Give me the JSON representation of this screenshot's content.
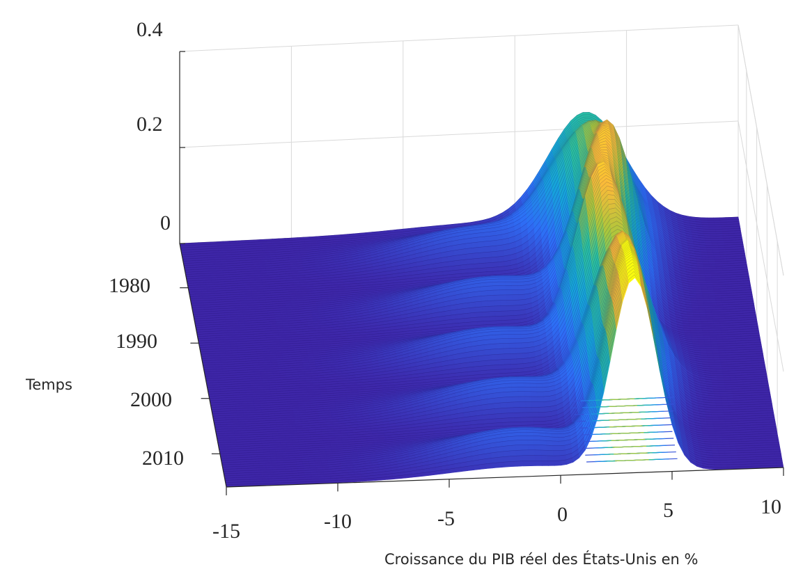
{
  "chart_data": {
    "type": "surface3d",
    "title": "",
    "xlabel": "Croissance du PIB réel des États-Unis en %",
    "ylabel": "Temps",
    "zlabel": "",
    "x_ticks": [
      "-15",
      "-10",
      "-5",
      "0",
      "5",
      "10"
    ],
    "y_ticks": [
      "1980",
      "1990",
      "2000",
      "2010"
    ],
    "z_ticks": [
      "0",
      "0.2",
      "0.4"
    ],
    "xlim": [
      -15,
      10
    ],
    "ylim": [
      1972,
      2016
    ],
    "zlim": [
      0,
      0.4
    ],
    "colormap": "parula",
    "colors": {
      "low": "#3e26a8",
      "mid": "#1fb8c8",
      "high": "#f9fb0e"
    },
    "grid": true,
    "contour_projection": true,
    "peaks": [
      {
        "year": 1975,
        "mean": 3.2,
        "sd": 1.7,
        "density": 0.23
      },
      {
        "year": 1983,
        "mean": 3.6,
        "sd": 1.2,
        "density": 0.34
      },
      {
        "year": 1992,
        "mean": 3.0,
        "sd": 1.15,
        "density": 0.36
      },
      {
        "year": 2000,
        "mean": 3.4,
        "sd": 1.3,
        "density": 0.3
      },
      {
        "year": 2009,
        "mean": 3.3,
        "sd": 1.0,
        "density": 0.4
      }
    ]
  }
}
